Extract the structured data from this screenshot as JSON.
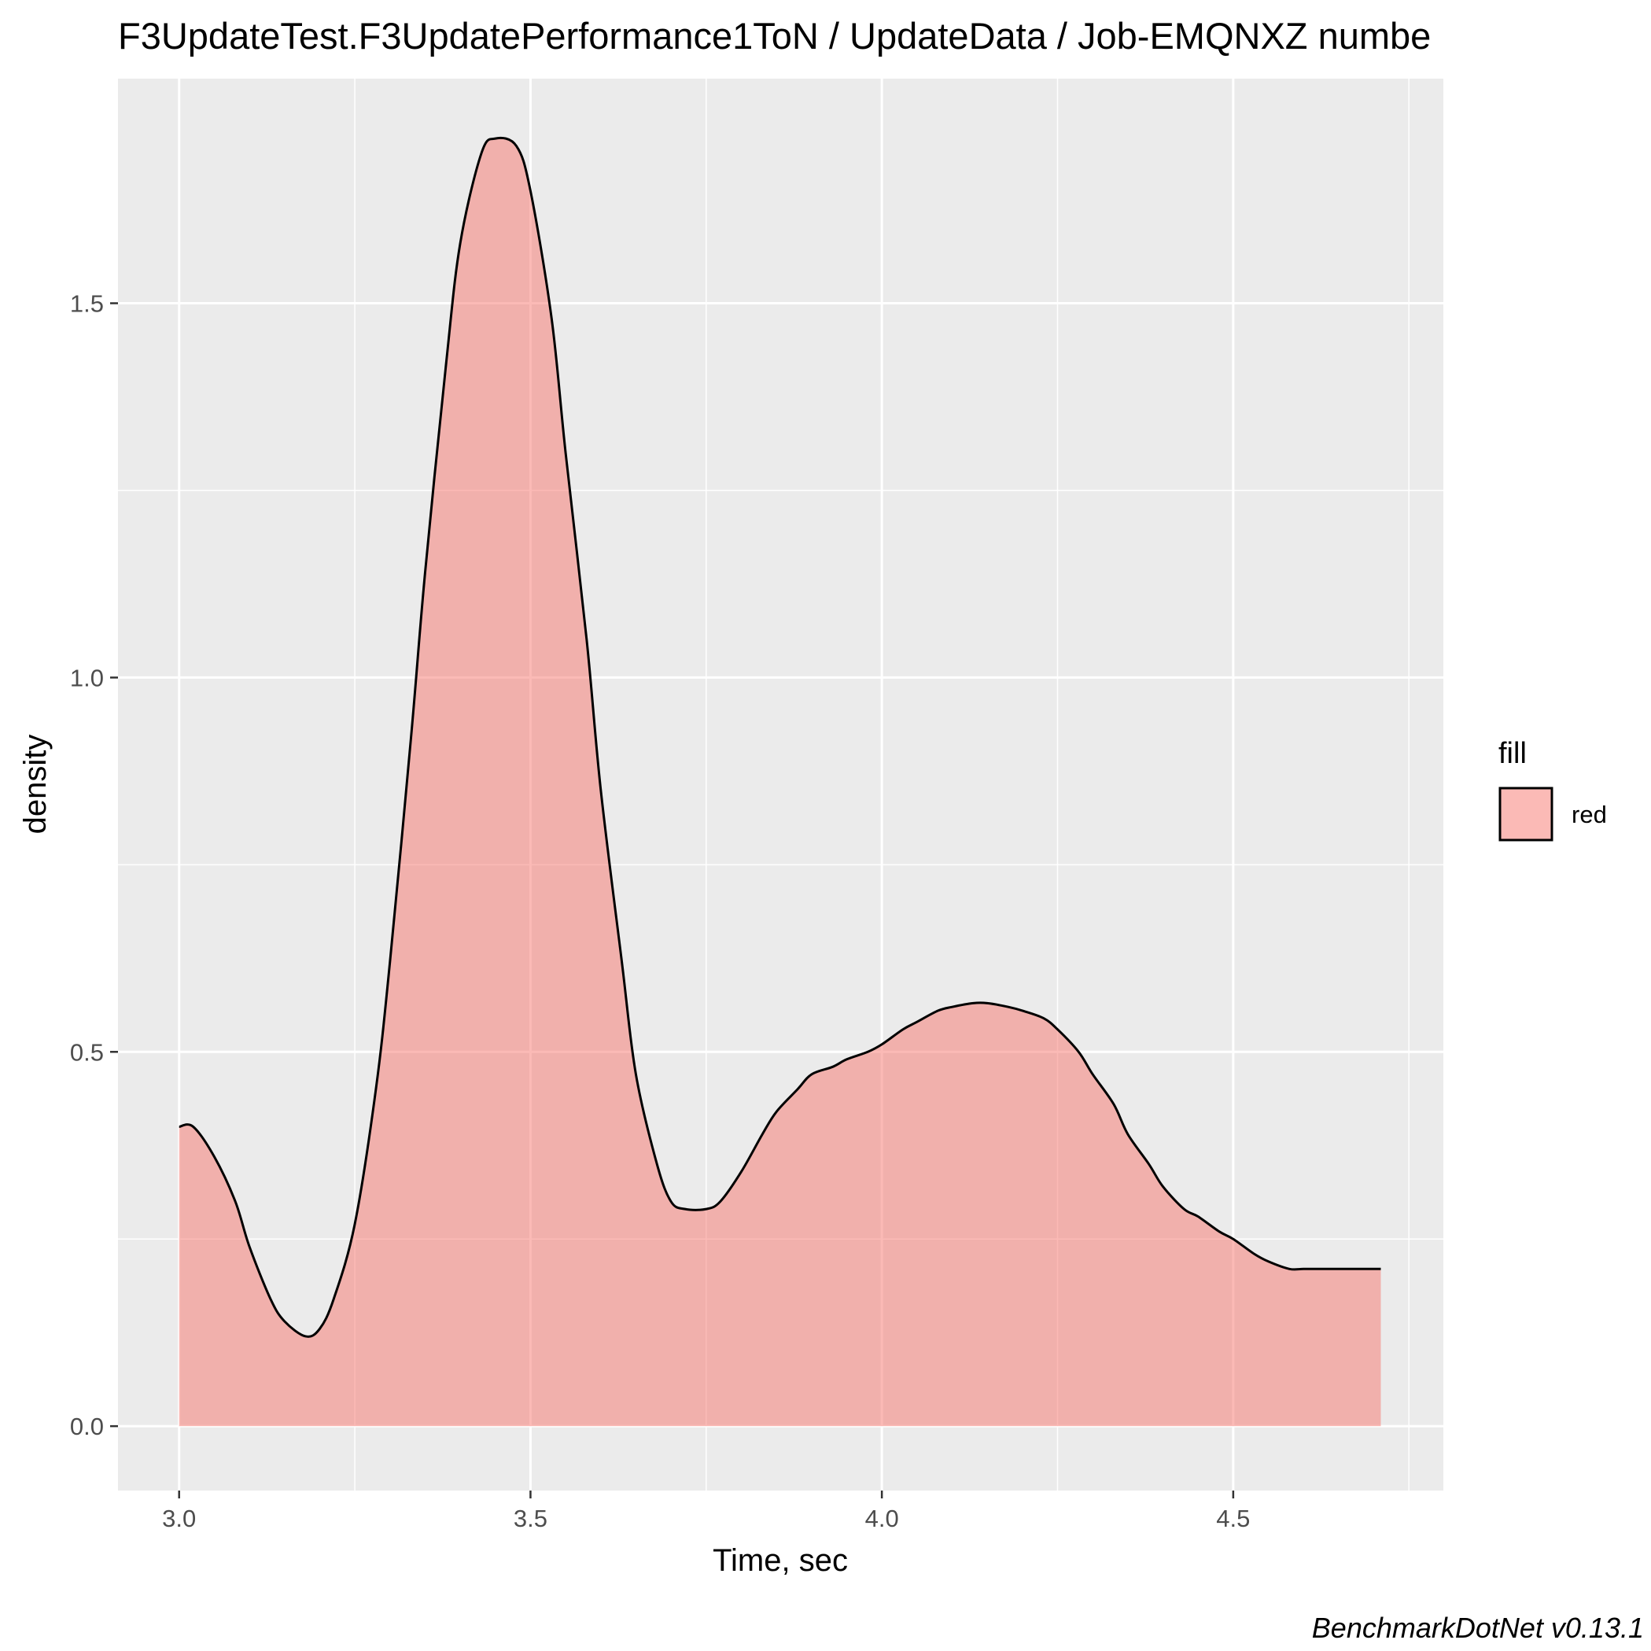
{
  "chart_data": {
    "type": "area",
    "title": "F3UpdateTest.F3UpdatePerformance1ToN / UpdateData / Job-EMQNXZ numbe",
    "xlabel": "Time, sec",
    "ylabel": "density",
    "caption": "BenchmarkDotNet v0.13.1",
    "xlim": [
      2.913,
      4.799
    ],
    "ylim": [
      -0.086,
      1.8
    ],
    "x_ticks": [
      3.0,
      3.5,
      4.0,
      4.5
    ],
    "x_tick_labels": [
      "3.0",
      "3.5",
      "4.0",
      "4.5"
    ],
    "y_ticks": [
      0.0,
      0.5,
      1.0,
      1.5
    ],
    "y_tick_labels": [
      "0.0",
      "0.5",
      "1.0",
      "1.5"
    ],
    "grid": true,
    "legend": {
      "title": "fill",
      "entries": [
        "red"
      ],
      "position": "right"
    },
    "colors": {
      "panel_background": "#EBEBEB",
      "grid": "#FFFFFF",
      "fill": "#F8766D",
      "fill_opacity": 0.5,
      "line": "#000000"
    },
    "series": [
      {
        "x": [
          3.0,
          3.02,
          3.05,
          3.08,
          3.1,
          3.13,
          3.15,
          3.18,
          3.2,
          3.22,
          3.25,
          3.28,
          3.3,
          3.33,
          3.35,
          3.38,
          3.4,
          3.43,
          3.45,
          3.48,
          3.5,
          3.53,
          3.55,
          3.58,
          3.6,
          3.63,
          3.65,
          3.68,
          3.7,
          3.72,
          3.75,
          3.77,
          3.8,
          3.83,
          3.85,
          3.88,
          3.9,
          3.93,
          3.95,
          3.98,
          4.0,
          4.03,
          4.05,
          4.08,
          4.1,
          4.13,
          4.15,
          4.18,
          4.2,
          4.23,
          4.25,
          4.28,
          4.3,
          4.33,
          4.35,
          4.38,
          4.4,
          4.43,
          4.45,
          4.48,
          4.5,
          4.53,
          4.55,
          4.58,
          4.6,
          4.63,
          4.65,
          4.68,
          4.7,
          4.71
        ],
        "y": [
          0.4,
          0.4,
          0.36,
          0.3,
          0.24,
          0.17,
          0.14,
          0.12,
          0.13,
          0.17,
          0.27,
          0.45,
          0.62,
          0.92,
          1.14,
          1.42,
          1.58,
          1.7,
          1.72,
          1.71,
          1.65,
          1.48,
          1.3,
          1.05,
          0.85,
          0.62,
          0.47,
          0.35,
          0.3,
          0.29,
          0.29,
          0.3,
          0.34,
          0.39,
          0.42,
          0.45,
          0.47,
          0.48,
          0.49,
          0.5,
          0.51,
          0.53,
          0.54,
          0.555,
          0.56,
          0.565,
          0.565,
          0.56,
          0.555,
          0.545,
          0.53,
          0.5,
          0.47,
          0.43,
          0.39,
          0.35,
          0.32,
          0.29,
          0.28,
          0.26,
          0.25,
          0.23,
          0.22,
          0.21,
          0.21,
          0.21,
          0.21,
          0.21,
          0.21,
          0.21
        ]
      }
    ]
  }
}
